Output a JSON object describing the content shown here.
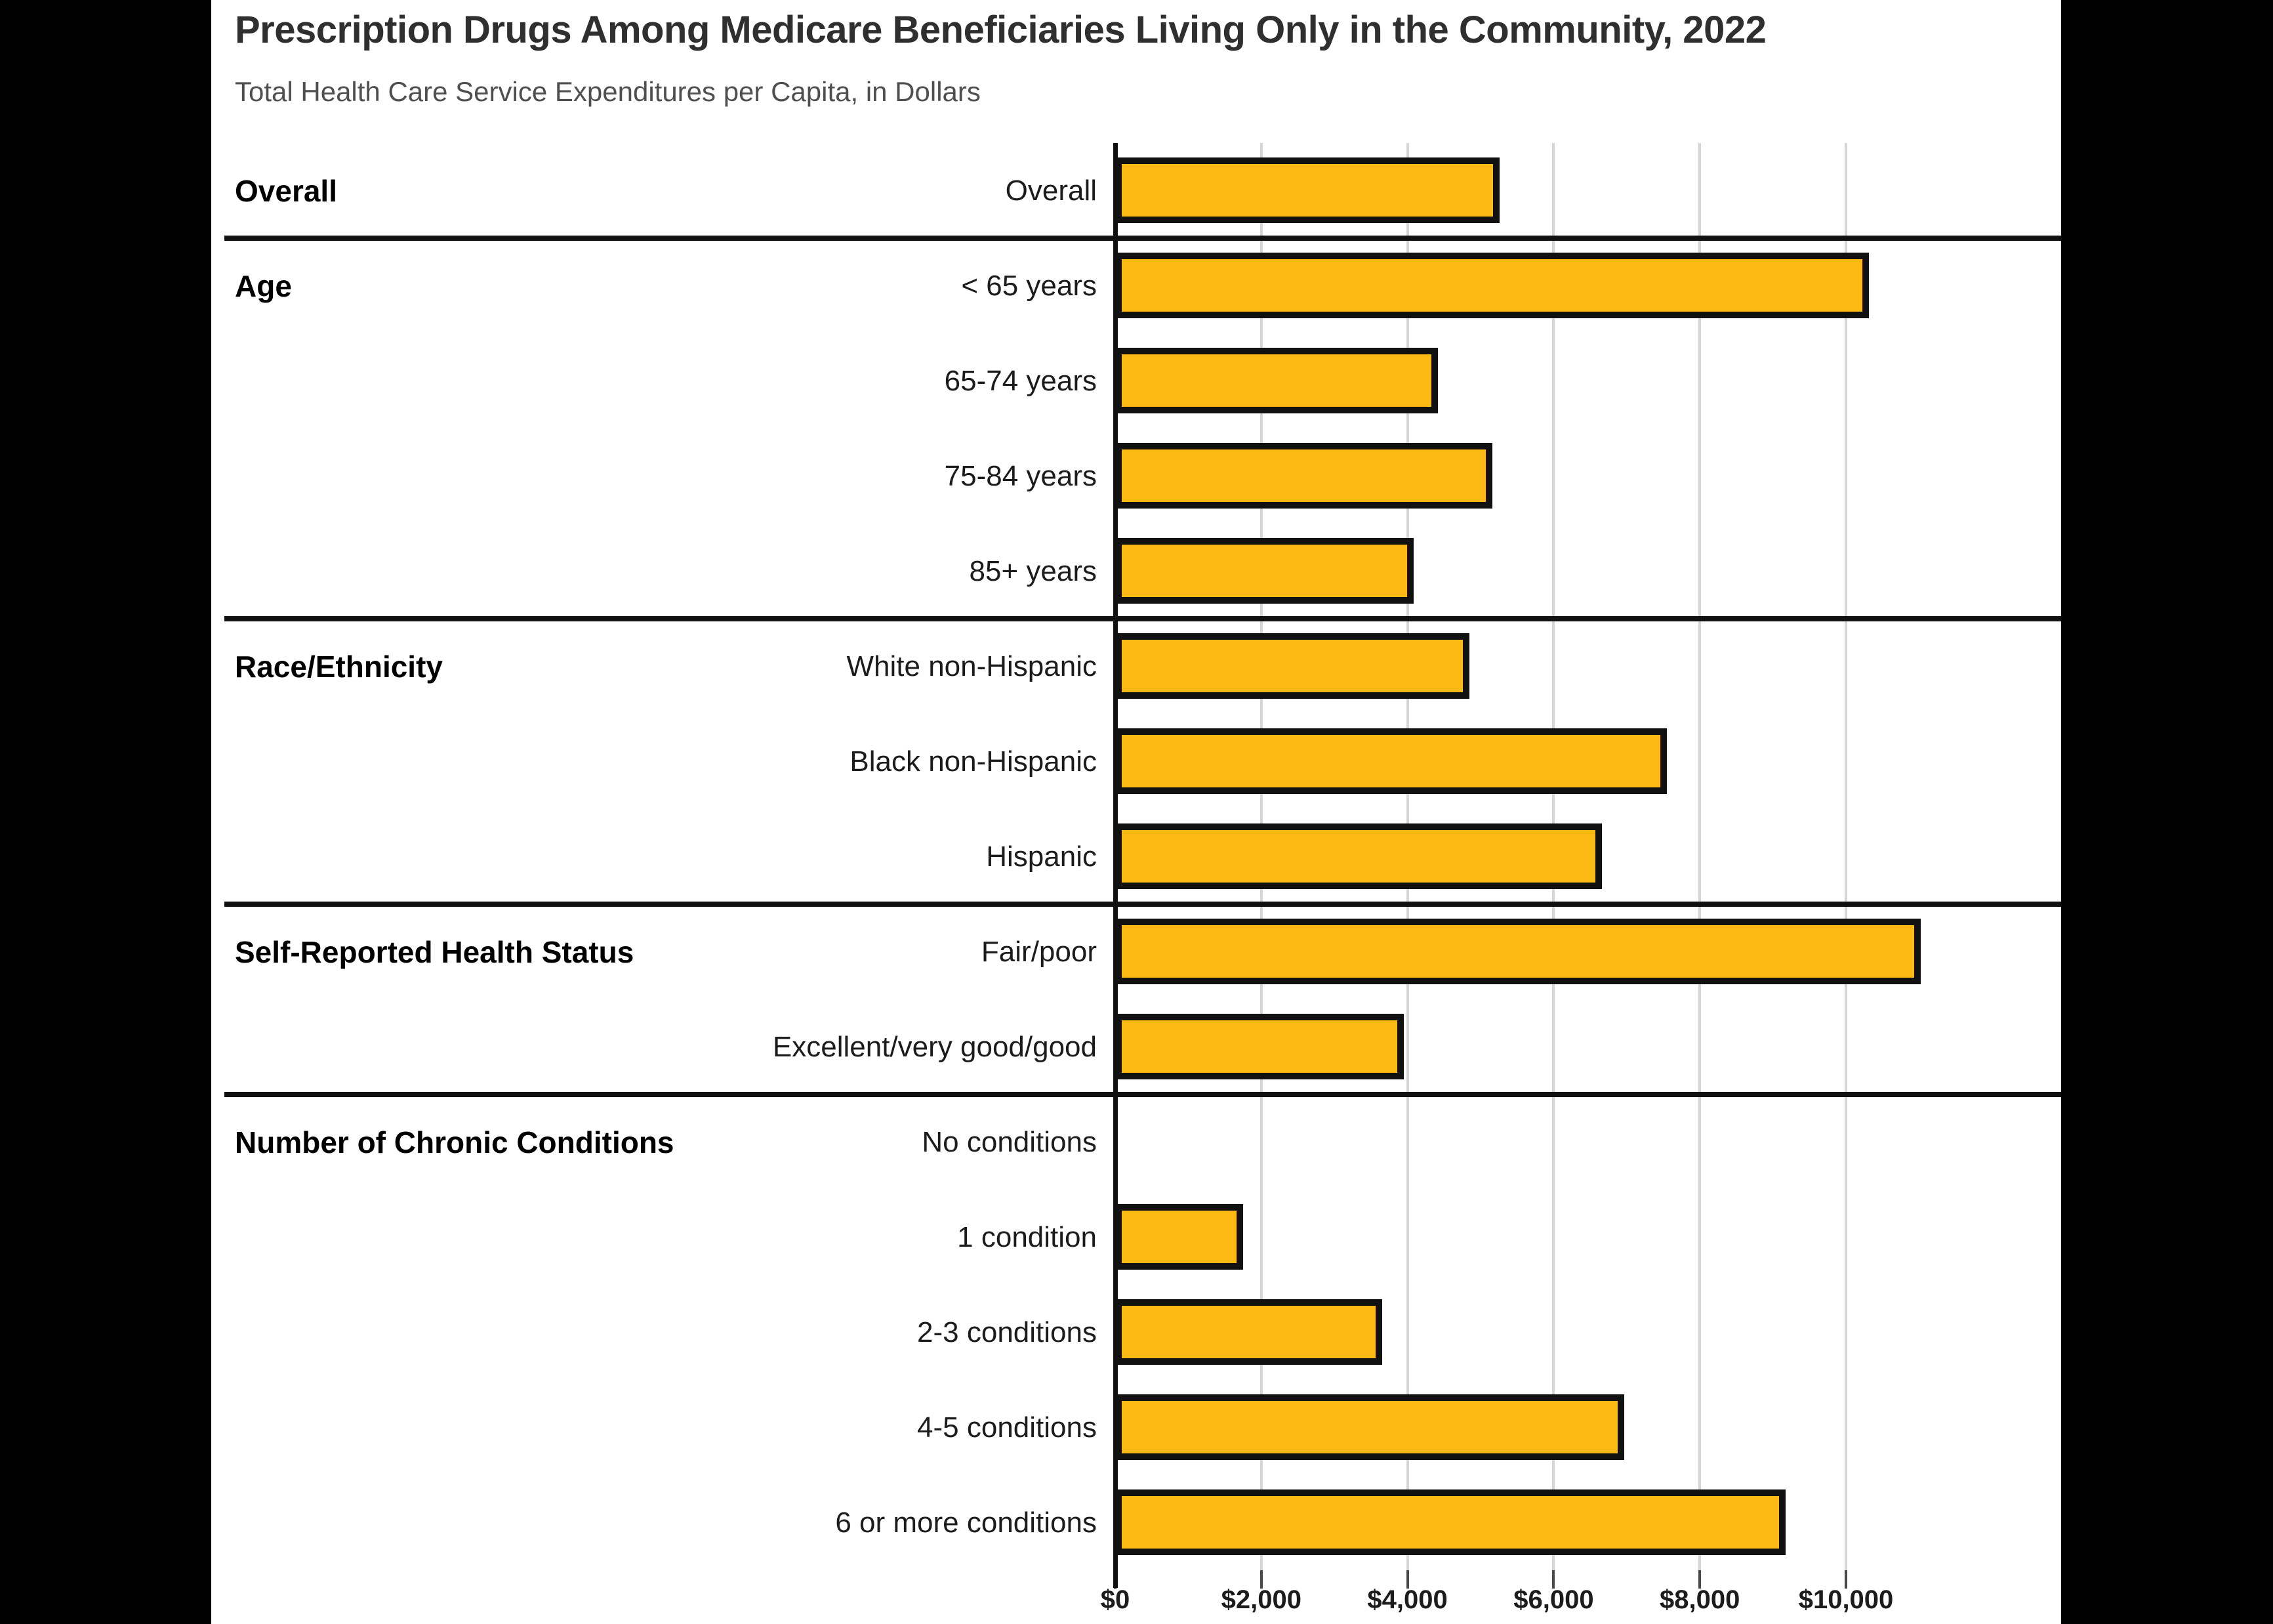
{
  "page": {
    "background_color": "#000000",
    "content_background_color": "#ffffff"
  },
  "chart_data": {
    "type": "bar",
    "orientation": "horizontal",
    "title": "Prescription Drugs Among Medicare Beneficiaries Living Only in the Community, 2022",
    "subtitle": "Total Health Care Service Expenditures per Capita, in Dollars",
    "bar_color": "#FCB813",
    "bar_border_color": "#111111",
    "gridline_color": "#d6d6d6",
    "grid": "vertical gridlines at each $2,000",
    "xlim": [
      0,
      12900
    ],
    "x_ticks": [
      {
        "value": 0,
        "label": "$0"
      },
      {
        "value": 2000,
        "label": "$2,000"
      },
      {
        "value": 4000,
        "label": "$4,000"
      },
      {
        "value": 6000,
        "label": "$6,000"
      },
      {
        "value": 8000,
        "label": "$8,000"
      },
      {
        "value": 10000,
        "label": "$10,000"
      }
    ],
    "groups": [
      {
        "label": "Overall",
        "rows": [
          {
            "label": "Overall",
            "value": 5260
          }
        ]
      },
      {
        "label": "Age",
        "rows": [
          {
            "label": "< 65 years",
            "value": 10310
          },
          {
            "label": "65-74 years",
            "value": 4420
          },
          {
            "label": "75-84 years",
            "value": 5160
          },
          {
            "label": "85+ years",
            "value": 4080
          }
        ]
      },
      {
        "label": "Race/Ethnicity",
        "rows": [
          {
            "label": "White non-Hispanic",
            "value": 4850
          },
          {
            "label": "Black non-Hispanic",
            "value": 7550
          },
          {
            "label": "Hispanic",
            "value": 6660
          }
        ]
      },
      {
        "label": "Self-Reported Health Status",
        "rows": [
          {
            "label": "Fair/poor",
            "value": 11020
          },
          {
            "label": "Excellent/very good/good",
            "value": 3950
          }
        ]
      },
      {
        "label": "Number of Chronic Conditions",
        "rows": [
          {
            "label": "No conditions",
            "value": 0
          },
          {
            "label": "1 condition",
            "value": 1750
          },
          {
            "label": "2-3 conditions",
            "value": 3650
          },
          {
            "label": "4-5 conditions",
            "value": 6970
          },
          {
            "label": "6 or more conditions",
            "value": 9170
          }
        ]
      }
    ]
  }
}
